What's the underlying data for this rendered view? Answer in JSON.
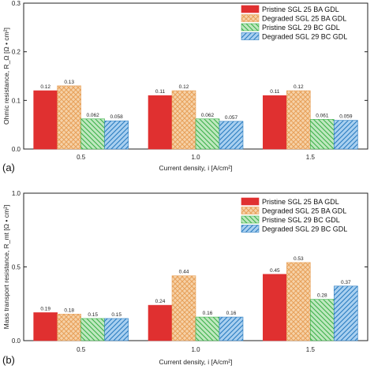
{
  "chart_data": [
    {
      "type": "bar",
      "panel_label": "(a)",
      "categories": [
        "0.5",
        "1.0",
        "1.5"
      ],
      "ylim": [
        0,
        0.3
      ],
      "yticks": [
        "0.0",
        "0.1",
        "0.2",
        "0.3"
      ],
      "ylabel": "Ohmic resistance, R_Ω [Ω • cm²]",
      "xlabel": "Current density, i [A/cm²]",
      "legend_position": "top-right",
      "series": [
        {
          "name": "Pristine SGL 25 BA GDL",
          "color": "#e03030",
          "pattern": "solid",
          "values": [
            0.12,
            0.11,
            0.11
          ],
          "labels": [
            "0.12",
            "0.11",
            "0.11"
          ]
        },
        {
          "name": "Degraded SGL 25 BA GDL",
          "color": "#e8a25c",
          "pattern": "crosshatch",
          "values": [
            0.13,
            0.12,
            0.12
          ],
          "labels": [
            "0.13",
            "0.12",
            "0.12"
          ]
        },
        {
          "name": "Pristine SGL 29 BC GDL",
          "color": "#3cb04a",
          "pattern": "hatch-back",
          "values": [
            0.062,
            0.062,
            0.061
          ],
          "labels": [
            "0.062",
            "0.062",
            "0.061"
          ]
        },
        {
          "name": "Degraded SGL 29 BC GDL",
          "color": "#2a7cc0",
          "pattern": "hatch-fwd",
          "values": [
            0.058,
            0.057,
            0.059
          ],
          "labels": [
            "0.058",
            "0.057",
            "0.059"
          ]
        }
      ]
    },
    {
      "type": "bar",
      "panel_label": "(b)",
      "categories": [
        "0.5",
        "1.0",
        "1.5"
      ],
      "ylim": [
        0,
        1.0
      ],
      "yticks": [
        "0.0",
        "0.5",
        "1.0"
      ],
      "ylabel": "Mass transport resistance, R_mt [Ω • cm²]",
      "xlabel": "Current density, i [A/cm²]",
      "legend_position": "top-right",
      "series": [
        {
          "name": "Pristine SGL 25 BA GDL",
          "color": "#e03030",
          "pattern": "solid",
          "values": [
            0.19,
            0.24,
            0.45
          ],
          "labels": [
            "0.19",
            "0.24",
            "0.45"
          ]
        },
        {
          "name": "Degraded SGL 25 BA GDL",
          "color": "#e8a25c",
          "pattern": "crosshatch",
          "values": [
            0.18,
            0.44,
            0.53
          ],
          "labels": [
            "0.18",
            "0.44",
            "0.53"
          ]
        },
        {
          "name": "Pristine SGL 29 BC GDL",
          "color": "#3cb04a",
          "pattern": "hatch-back",
          "values": [
            0.15,
            0.16,
            0.28
          ],
          "labels": [
            "0.15",
            "0.16",
            "0.28"
          ]
        },
        {
          "name": "Degraded SGL 29 BC GDL",
          "color": "#2a7cc0",
          "pattern": "hatch-fwd",
          "values": [
            0.15,
            0.16,
            0.37
          ],
          "labels": [
            "0.15",
            "0.16",
            "0.37"
          ]
        }
      ]
    }
  ]
}
